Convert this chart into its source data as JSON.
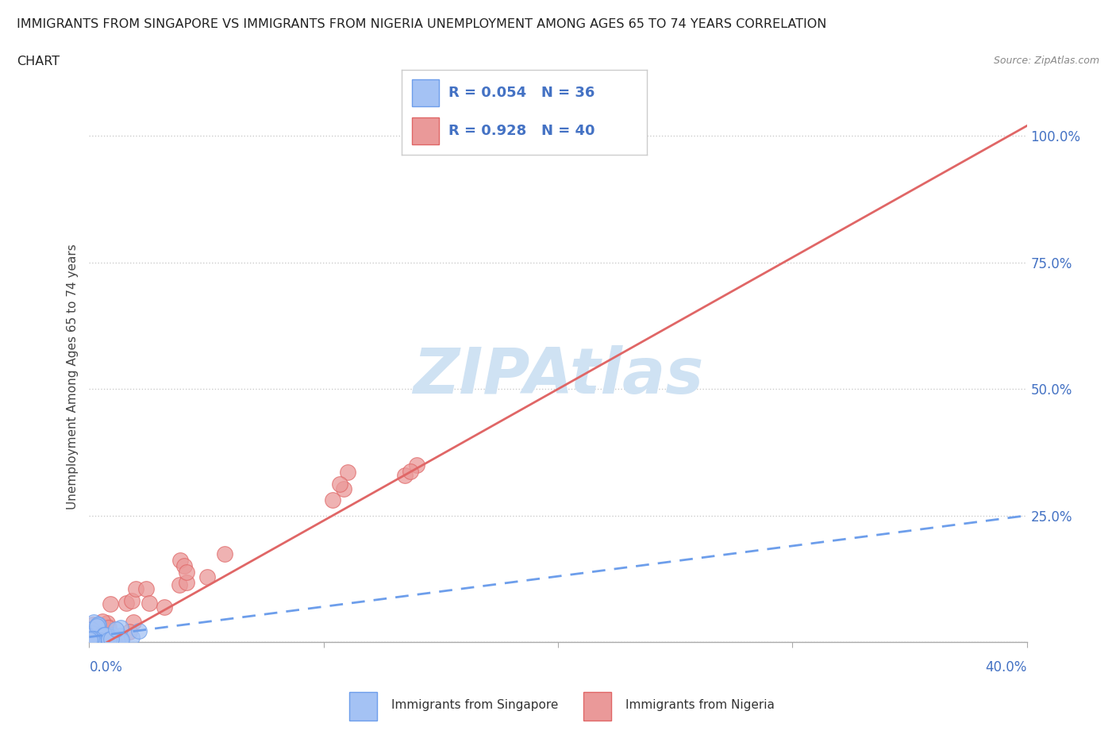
{
  "title_line1": "IMMIGRANTS FROM SINGAPORE VS IMMIGRANTS FROM NIGERIA UNEMPLOYMENT AMONG AGES 65 TO 74 YEARS CORRELATION",
  "title_line2": "CHART",
  "source_text": "Source: ZipAtlas.com",
  "xlabel_bottom_left": "0.0%",
  "xlabel_bottom_right": "40.0%",
  "ylabel": "Unemployment Among Ages 65 to 74 years",
  "xlim": [
    0,
    0.4
  ],
  "ylim": [
    0,
    1.05
  ],
  "yticks": [
    0.0,
    0.25,
    0.5,
    0.75,
    1.0
  ],
  "ytick_labels": [
    "",
    "25.0%",
    "50.0%",
    "75.0%",
    "100.0%"
  ],
  "singapore_color": "#a4c2f4",
  "nigeria_color": "#ea9999",
  "singapore_R": 0.054,
  "singapore_N": 36,
  "nigeria_R": 0.928,
  "nigeria_N": 40,
  "trend_singapore_color": "#6d9eeb",
  "trend_nigeria_color": "#e06666",
  "watermark_text": "ZIPAtlas",
  "watermark_color": "#cfe2f3",
  "legend_R_N_color": "#4472c4",
  "background_color": "#ffffff",
  "ng_trend_x0": 0.0,
  "ng_trend_y0": -0.02,
  "ng_trend_x1": 0.4,
  "ng_trend_y1": 1.02,
  "sg_trend_x0": 0.0,
  "sg_trend_y0": 0.01,
  "sg_trend_x1": 0.4,
  "sg_trend_y1": 0.25,
  "xtick_positions": [
    0.0,
    0.1,
    0.2,
    0.3,
    0.4
  ],
  "grid_color": "#cccccc"
}
